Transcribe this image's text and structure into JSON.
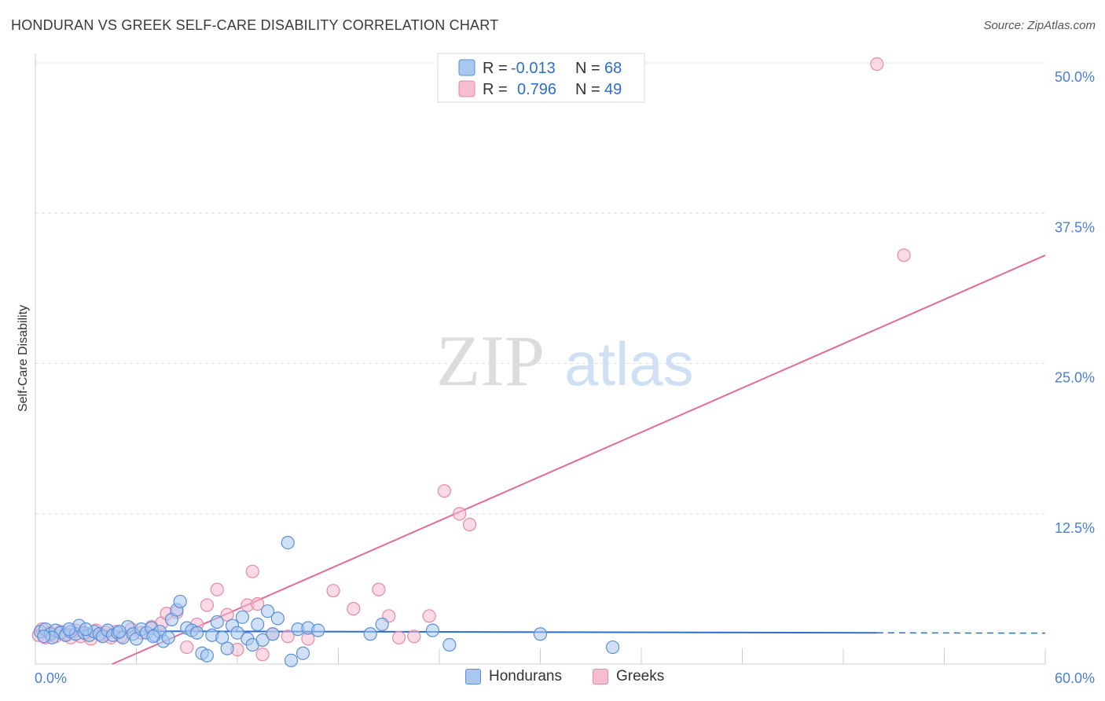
{
  "title": "HONDURAN VS GREEK SELF-CARE DISABILITY CORRELATION CHART",
  "source": "Source: ZipAtlas.com",
  "watermark": {
    "part1": "ZIP",
    "part2": "atlas"
  },
  "legend": {
    "rows": [
      {
        "r_label": "R =",
        "r_value": "-0.013",
        "n_label": "N =",
        "n_value": "68"
      },
      {
        "r_label": "R =",
        "r_value": "0.796",
        "n_label": "N =",
        "n_value": "49"
      }
    ]
  },
  "bottom_legend": {
    "hondurans": "Hondurans",
    "greeks": "Greeks"
  },
  "colors": {
    "hondurans_fill": "#a9c8f0",
    "hondurans_stroke": "#5b8fd8",
    "hondurans_line": "#2a6fcf",
    "greeks_fill": "#f6bcd0",
    "greeks_stroke": "#e589a8",
    "greeks_line": "#e26a95",
    "tick": "#4a7fd0",
    "grid": "#dddddd"
  },
  "chart_data": {
    "type": "scatter",
    "title": "HONDURAN VS GREEK SELF-CARE DISABILITY CORRELATION CHART",
    "xlabel": "",
    "ylabel": "Self-Care Disability",
    "xlim": [
      0,
      60
    ],
    "ylim": [
      0,
      50
    ],
    "x_tick_labels": [
      "0.0%",
      "60.0%"
    ],
    "y_ticks": [
      12.5,
      25.0,
      37.5,
      50.0
    ],
    "y_tick_labels": [
      "12.5%",
      "25.0%",
      "37.5%",
      "50.0%"
    ],
    "series": [
      {
        "name": "Hondurans",
        "r": -0.013,
        "n": 68,
        "trend": {
          "x0": 0,
          "y0": 2.75,
          "x1": 50,
          "y1": 2.6,
          "dashed_to": 60
        },
        "points": [
          [
            0.3,
            2.7
          ],
          [
            0.6,
            2.9
          ],
          [
            0.9,
            2.5
          ],
          [
            1.2,
            2.8
          ],
          [
            1.5,
            2.6
          ],
          [
            1.8,
            2.4
          ],
          [
            2.1,
            2.7
          ],
          [
            2.4,
            2.5
          ],
          [
            2.6,
            3.2
          ],
          [
            2.9,
            2.6
          ],
          [
            3.2,
            2.4
          ],
          [
            3.5,
            2.7
          ],
          [
            3.8,
            2.5
          ],
          [
            4.0,
            2.3
          ],
          [
            4.3,
            2.8
          ],
          [
            4.6,
            2.4
          ],
          [
            4.9,
            2.6
          ],
          [
            5.2,
            2.2
          ],
          [
            5.5,
            3.1
          ],
          [
            5.8,
            2.5
          ],
          [
            6.0,
            2.1
          ],
          [
            6.3,
            2.9
          ],
          [
            6.6,
            2.6
          ],
          [
            6.9,
            3.0
          ],
          [
            7.1,
            2.4
          ],
          [
            7.4,
            2.7
          ],
          [
            7.6,
            1.9
          ],
          [
            7.9,
            2.2
          ],
          [
            8.1,
            3.7
          ],
          [
            8.4,
            4.5
          ],
          [
            8.6,
            5.2
          ],
          [
            9.0,
            3.0
          ],
          [
            9.3,
            2.8
          ],
          [
            9.6,
            2.6
          ],
          [
            9.9,
            0.9
          ],
          [
            10.2,
            0.7
          ],
          [
            10.5,
            2.4
          ],
          [
            10.8,
            3.5
          ],
          [
            11.1,
            2.2
          ],
          [
            11.4,
            1.3
          ],
          [
            11.7,
            3.2
          ],
          [
            12.0,
            2.6
          ],
          [
            12.3,
            3.9
          ],
          [
            12.6,
            2.1
          ],
          [
            12.9,
            1.6
          ],
          [
            13.2,
            3.3
          ],
          [
            13.5,
            2.0
          ],
          [
            13.8,
            4.4
          ],
          [
            14.1,
            2.5
          ],
          [
            14.4,
            3.8
          ],
          [
            15.0,
            10.1
          ],
          [
            15.6,
            2.9
          ],
          [
            16.2,
            3.0
          ],
          [
            15.9,
            0.9
          ],
          [
            15.2,
            0.3
          ],
          [
            16.8,
            2.8
          ],
          [
            19.9,
            2.5
          ],
          [
            20.6,
            3.3
          ],
          [
            23.6,
            2.8
          ],
          [
            24.6,
            1.6
          ],
          [
            30.0,
            2.5
          ],
          [
            34.3,
            1.4
          ],
          [
            1.0,
            2.2
          ],
          [
            3.0,
            2.9
          ],
          [
            5.0,
            2.7
          ],
          [
            7.0,
            2.3
          ],
          [
            0.5,
            2.3
          ],
          [
            2.0,
            2.9
          ]
        ]
      },
      {
        "name": "Greeks",
        "r": 0.796,
        "n": 49,
        "trend": {
          "x0": 0,
          "y0": -2.8,
          "x1": 60,
          "y1": 34.0
        },
        "points": [
          [
            0.2,
            2.4
          ],
          [
            0.4,
            2.9
          ],
          [
            0.6,
            2.2
          ],
          [
            0.9,
            2.6
          ],
          [
            1.2,
            2.3
          ],
          [
            1.5,
            2.7
          ],
          [
            1.8,
            2.5
          ],
          [
            2.1,
            2.2
          ],
          [
            2.4,
            2.8
          ],
          [
            2.7,
            2.3
          ],
          [
            3.0,
            2.5
          ],
          [
            3.3,
            2.1
          ],
          [
            3.6,
            2.8
          ],
          [
            3.9,
            2.4
          ],
          [
            4.2,
            2.6
          ],
          [
            4.5,
            2.2
          ],
          [
            4.8,
            2.7
          ],
          [
            5.1,
            2.3
          ],
          [
            5.7,
            2.9
          ],
          [
            6.3,
            2.6
          ],
          [
            6.9,
            3.1
          ],
          [
            7.5,
            3.4
          ],
          [
            7.8,
            4.2
          ],
          [
            8.4,
            4.3
          ],
          [
            9.0,
            1.4
          ],
          [
            9.6,
            3.3
          ],
          [
            10.2,
            4.9
          ],
          [
            10.8,
            6.2
          ],
          [
            11.4,
            4.1
          ],
          [
            12.0,
            1.2
          ],
          [
            12.6,
            4.9
          ],
          [
            13.2,
            5.0
          ],
          [
            12.9,
            7.7
          ],
          [
            13.5,
            0.8
          ],
          [
            14.1,
            2.5
          ],
          [
            15.0,
            2.3
          ],
          [
            16.2,
            2.1
          ],
          [
            17.7,
            6.1
          ],
          [
            18.9,
            4.6
          ],
          [
            20.4,
            6.2
          ],
          [
            21.0,
            4.0
          ],
          [
            21.6,
            2.2
          ],
          [
            22.5,
            2.3
          ],
          [
            23.4,
            4.0
          ],
          [
            24.3,
            14.4
          ],
          [
            25.2,
            12.5
          ],
          [
            25.8,
            11.6
          ],
          [
            50.0,
            49.9
          ],
          [
            51.6,
            34.0
          ]
        ]
      }
    ]
  }
}
